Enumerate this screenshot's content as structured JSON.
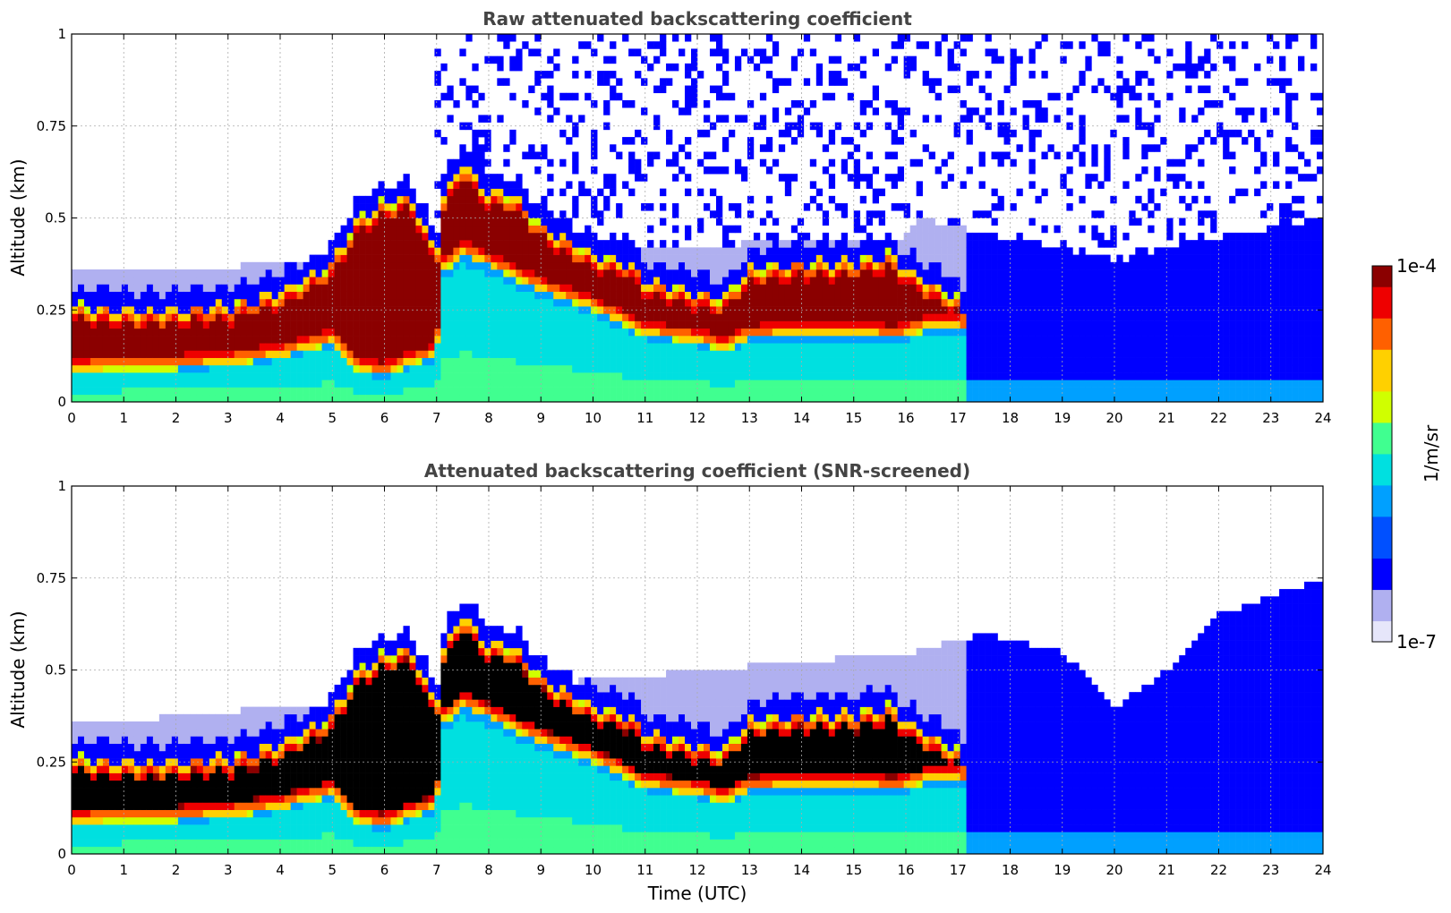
{
  "chart_data": [
    {
      "type": "heatmap",
      "title": "Raw attenuated backscattering coefficient",
      "xlabel": "",
      "ylabel": "Altitude (km)",
      "xlim": [
        0,
        24
      ],
      "ylim": [
        0,
        1
      ],
      "xticks": [
        "0",
        "1",
        "2",
        "3",
        "4",
        "5",
        "6",
        "7",
        "8",
        "9",
        "10",
        "11",
        "12",
        "13",
        "14",
        "15",
        "16",
        "17",
        "18",
        "19",
        "20",
        "21",
        "22",
        "23",
        "24"
      ],
      "yticks": [
        "0",
        "0.25",
        "0.5",
        "0.75",
        "1"
      ],
      "grid": true,
      "screened": false,
      "layer_top_km": [
        [
          0,
          0.26
        ],
        [
          1,
          0.25
        ],
        [
          2,
          0.25
        ],
        [
          2.5,
          0.26
        ],
        [
          3,
          0.26
        ],
        [
          4,
          0.3
        ],
        [
          4.6,
          0.34
        ],
        [
          5,
          0.38
        ],
        [
          5.5,
          0.5
        ],
        [
          6,
          0.54
        ],
        [
          6.5,
          0.56
        ],
        [
          7,
          0.4
        ],
        [
          7.1,
          0.55
        ],
        [
          7.5,
          0.65
        ],
        [
          8,
          0.57
        ],
        [
          8.5,
          0.56
        ],
        [
          9,
          0.48
        ],
        [
          10,
          0.4
        ],
        [
          10.7,
          0.38
        ],
        [
          11,
          0.33
        ],
        [
          12,
          0.3
        ],
        [
          12.5,
          0.28
        ],
        [
          13,
          0.36
        ],
        [
          14,
          0.38
        ],
        [
          15,
          0.38
        ],
        [
          15.7,
          0.4
        ],
        [
          16,
          0.36
        ],
        [
          16.5,
          0.32
        ],
        [
          17,
          0.28
        ],
        [
          17.2,
          0.2
        ]
      ],
      "layer_bottom_km": [
        [
          0,
          0.08
        ],
        [
          1,
          0.09
        ],
        [
          2,
          0.09
        ],
        [
          3,
          0.1
        ],
        [
          4,
          0.12
        ],
        [
          5,
          0.16
        ],
        [
          5.5,
          0.08
        ],
        [
          6,
          0.07
        ],
        [
          6.5,
          0.1
        ],
        [
          7,
          0.12
        ],
        [
          7.1,
          0.35
        ],
        [
          7.5,
          0.4
        ],
        [
          8,
          0.37
        ],
        [
          9,
          0.3
        ],
        [
          10,
          0.25
        ],
        [
          11,
          0.18
        ],
        [
          12,
          0.16
        ],
        [
          12.5,
          0.14
        ],
        [
          13,
          0.17
        ],
        [
          14,
          0.18
        ],
        [
          15,
          0.18
        ],
        [
          15.8,
          0.17
        ],
        [
          16.5,
          0.2
        ],
        [
          17,
          0.2
        ],
        [
          17.2,
          0.18
        ]
      ],
      "noise_top_km": [
        [
          0,
          0.35
        ],
        [
          16,
          0.45
        ],
        [
          16.2,
          0.5
        ],
        [
          20,
          0.38
        ],
        [
          21,
          0.42
        ],
        [
          24,
          0.5
        ]
      ]
    },
    {
      "type": "heatmap",
      "title": "Attenuated backscattering coefficient (SNR-screened)",
      "xlabel": "Time (UTC)",
      "ylabel": "Altitude (km)",
      "xlim": [
        0,
        24
      ],
      "ylim": [
        0,
        1
      ],
      "xticks": [
        "0",
        "1",
        "2",
        "3",
        "4",
        "5",
        "6",
        "7",
        "8",
        "9",
        "10",
        "11",
        "12",
        "13",
        "14",
        "15",
        "16",
        "17",
        "18",
        "19",
        "20",
        "21",
        "22",
        "23",
        "24"
      ],
      "yticks": [
        "0",
        "0.25",
        "0.5",
        "0.75",
        "1"
      ],
      "grid": true,
      "screened": true,
      "noise_top_km": [
        [
          0,
          0.35
        ],
        [
          16.2,
          0.55
        ],
        [
          17.5,
          0.6
        ],
        [
          19,
          0.55
        ],
        [
          20,
          0.4
        ],
        [
          21,
          0.5
        ],
        [
          22,
          0.65
        ],
        [
          23,
          0.7
        ],
        [
          24,
          0.75
        ]
      ]
    }
  ],
  "colorbar": {
    "label": "1/m/sr",
    "max_label": "1e-4",
    "min_label": "1e-7",
    "scale": "log",
    "colormap": [
      "#e6e6fa",
      "#b0b0f0",
      "#0000ff",
      "#0050ff",
      "#00a0ff",
      "#00e0e0",
      "#40ff90",
      "#d0ff00",
      "#ffd000",
      "#ff6000",
      "#ee0000",
      "#8b0000"
    ],
    "screened_saturation_color": "#000000"
  }
}
